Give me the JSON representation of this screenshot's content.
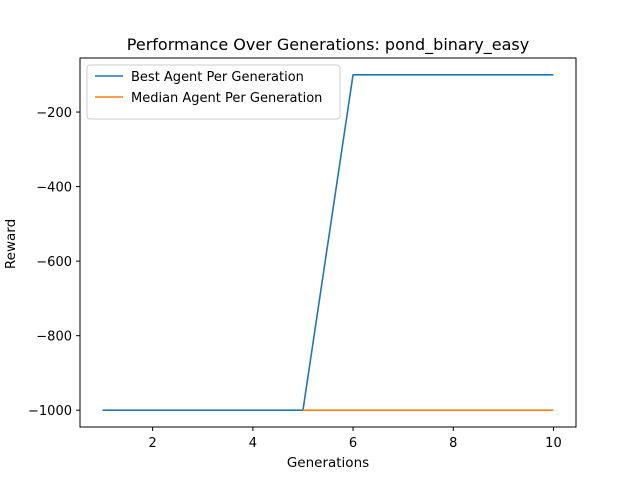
{
  "chart_data": {
    "type": "line",
    "title": "Performance Over Generations: pond_binary_easy",
    "xlabel": "Generations",
    "ylabel": "Reward",
    "xlim": [
      0.55,
      10.45
    ],
    "ylim": [
      -1045,
      -55
    ],
    "xticks": [
      2,
      4,
      6,
      8,
      10
    ],
    "xtick_labels": [
      "2",
      "4",
      "6",
      "8",
      "10"
    ],
    "yticks": [
      -200,
      -400,
      -600,
      -800,
      -1000
    ],
    "ytick_labels": [
      "−200",
      "−400",
      "−600",
      "−800",
      "−1000"
    ],
    "grid": false,
    "legend_position": "upper-left",
    "x": [
      1,
      2,
      3,
      4,
      5,
      6,
      7,
      8,
      9,
      10
    ],
    "series": [
      {
        "name": "Best Agent Per Generation",
        "color": "#1f77b4",
        "values": [
          -1000,
          -1000,
          -1000,
          -1000,
          -1000,
          -100,
          -100,
          -100,
          -100,
          -100
        ]
      },
      {
        "name": "Median Agent Per Generation",
        "color": "#ff7f0e",
        "values": [
          null,
          null,
          null,
          null,
          -1000,
          -1000,
          -1000,
          -1000,
          -1000,
          -1000
        ]
      }
    ]
  }
}
